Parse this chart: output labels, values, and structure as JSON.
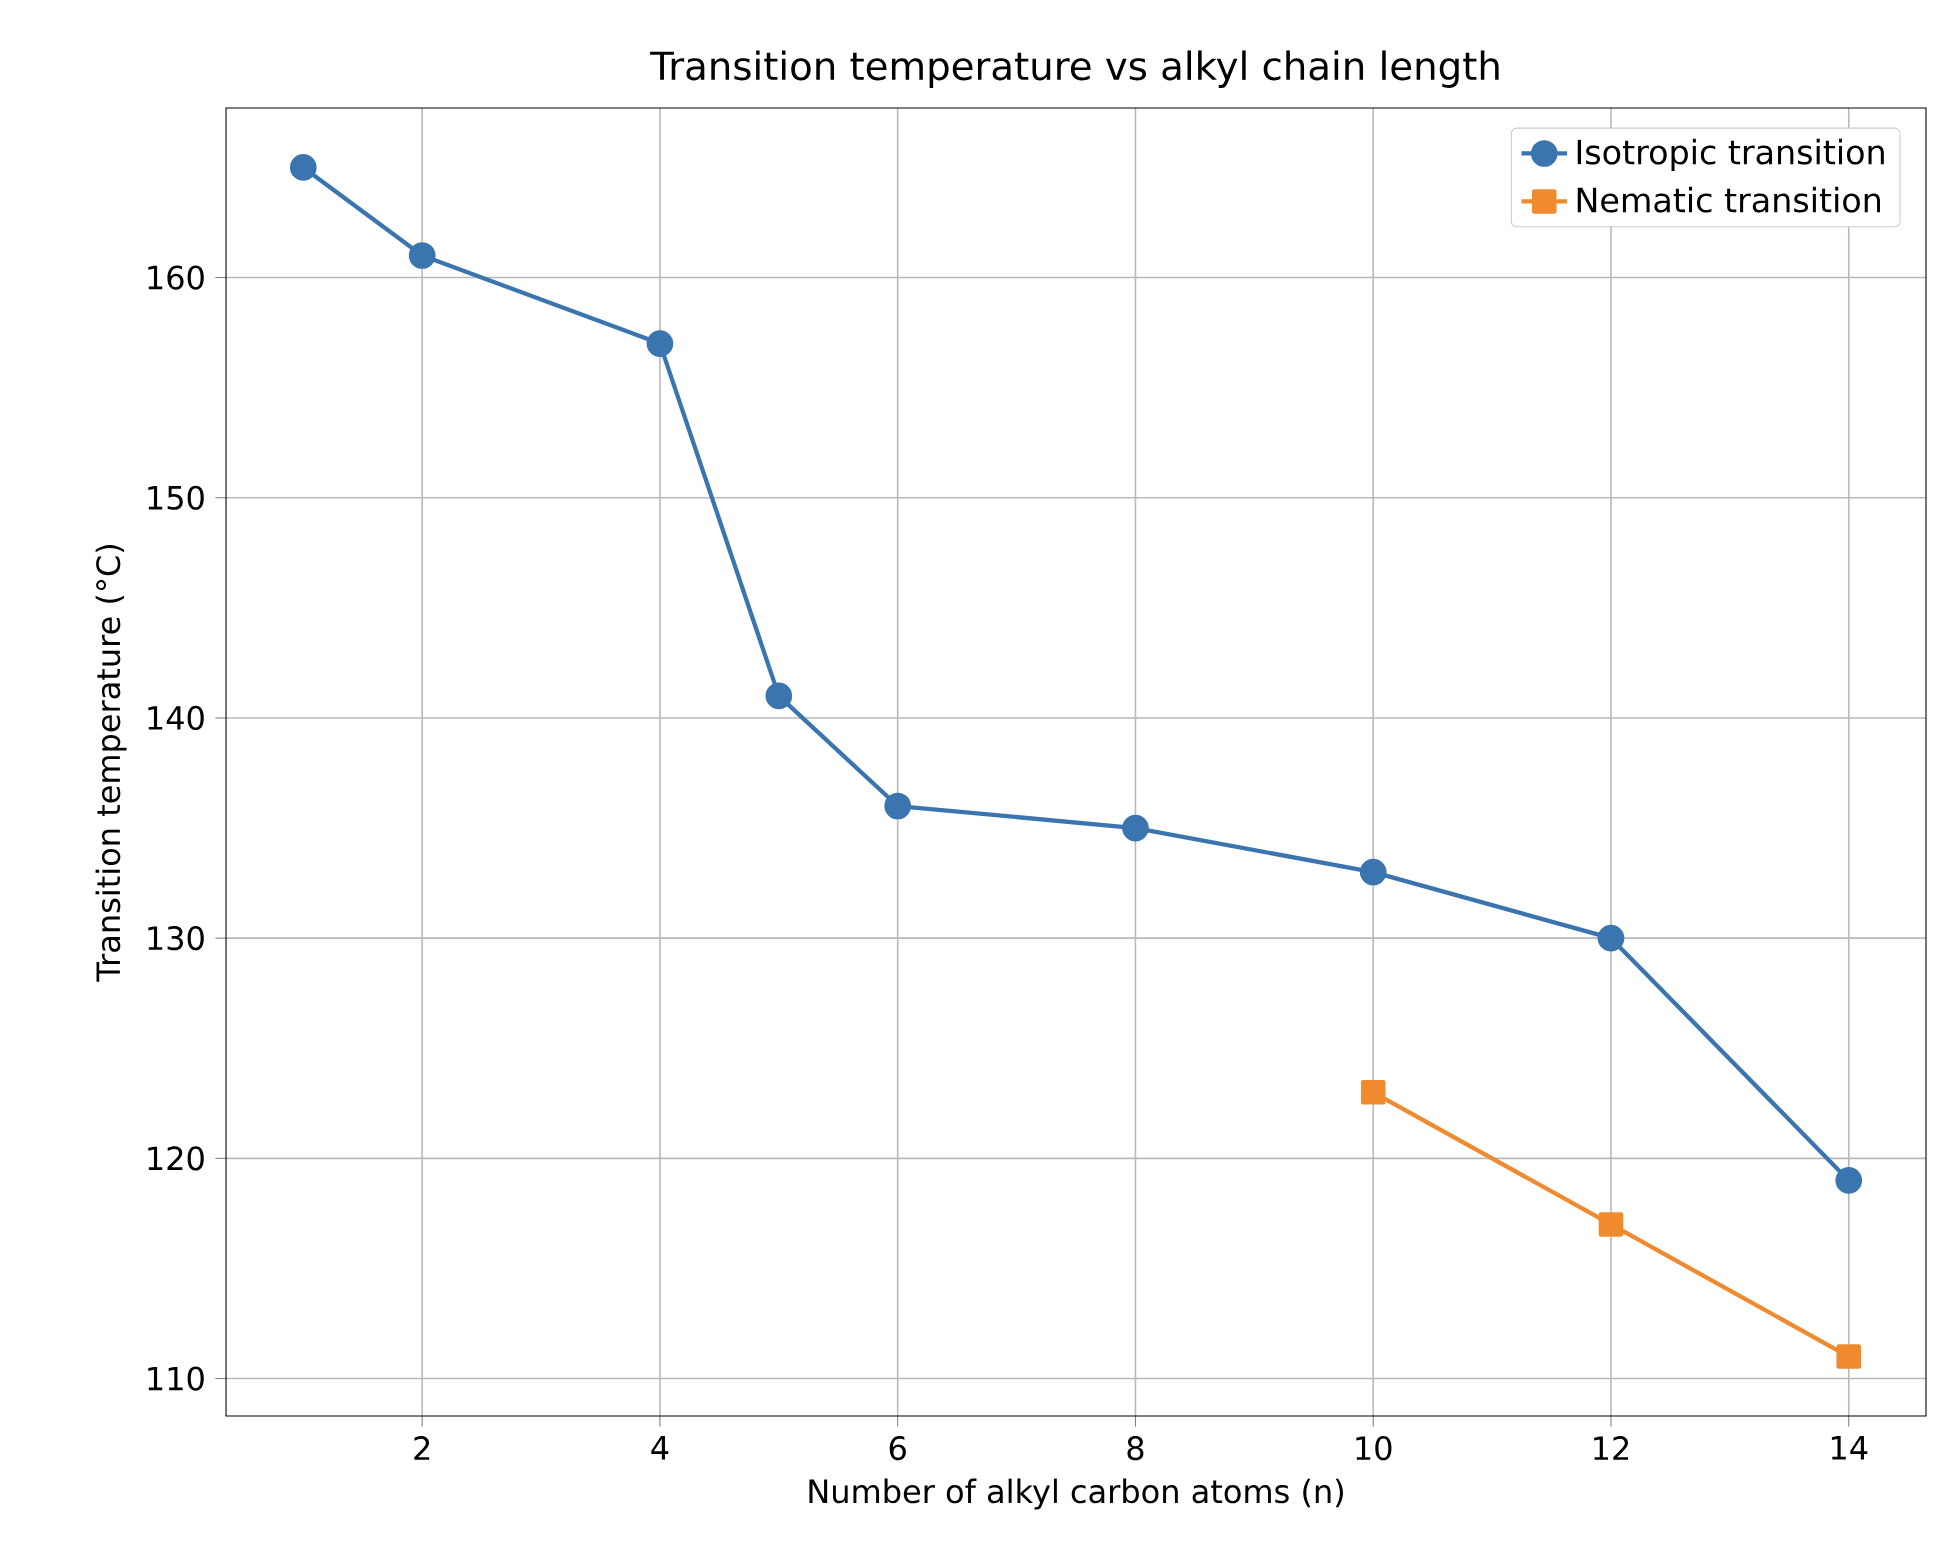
{
  "chart_data": {
    "type": "line",
    "title": "Transition temperature vs alkyl chain length",
    "xlabel": "Number of alkyl carbon atoms (n)",
    "ylabel": "Transition temperature (°C)",
    "series": [
      {
        "name": "Isotropic transition",
        "color": "#3a75b0",
        "marker": "circle",
        "x": [
          1,
          2,
          4,
          5,
          6,
          8,
          10,
          12,
          14
        ],
        "values": [
          165,
          161,
          157,
          141,
          136,
          135,
          133,
          130,
          119
        ]
      },
      {
        "name": "Nematic transition",
        "color": "#ef8a2e",
        "marker": "square",
        "x": [
          10,
          12,
          14
        ],
        "values": [
          123,
          117,
          111
        ]
      }
    ],
    "xlim": [
      0.35,
      14.65
    ],
    "ylim": [
      108.3,
      167.7
    ],
    "xticks": [
      2,
      4,
      6,
      8,
      10,
      12,
      14
    ],
    "yticks": [
      110,
      120,
      130,
      140,
      150,
      160
    ],
    "grid": true,
    "legend": "top right",
    "line_style": "solid"
  }
}
